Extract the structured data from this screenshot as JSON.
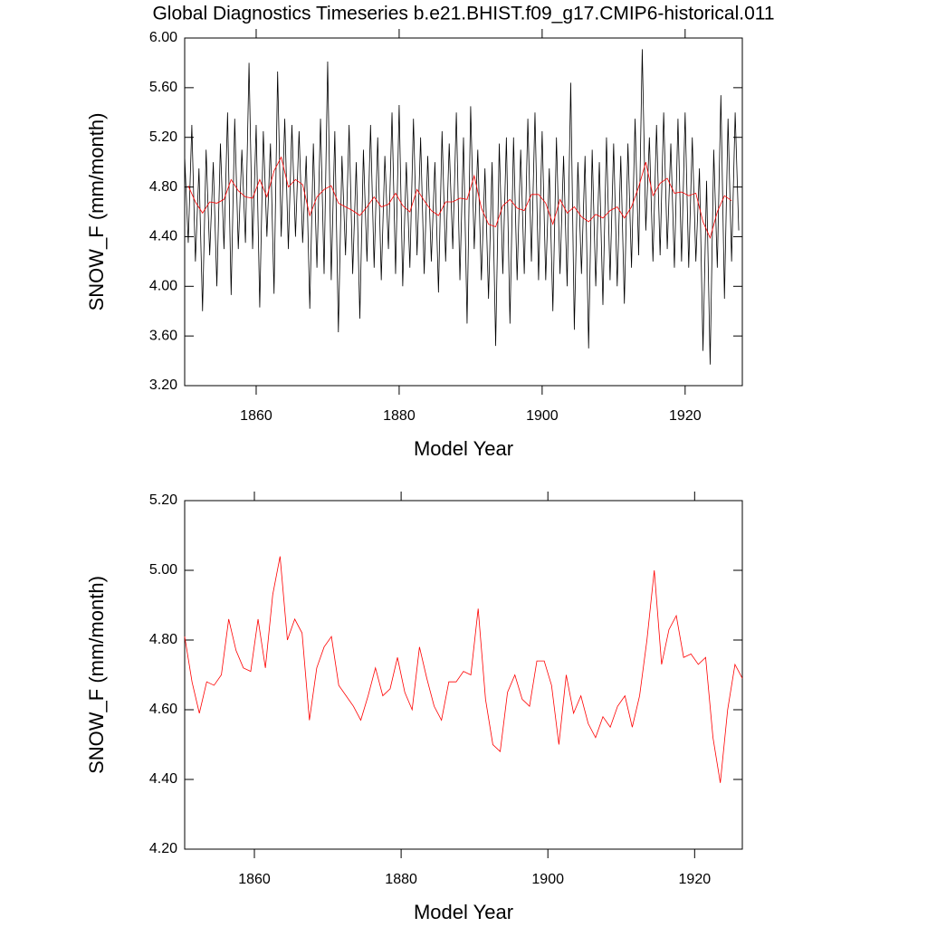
{
  "chart_data": [
    {
      "type": "line",
      "title": "Global Diagnostics Timeseries b.e21.BHIST.f09_g17.CMIP6-historical.011",
      "x_label": "Model Year",
      "y_label": "SNOW_F (mm/month)",
      "xlim": [
        1850,
        1928
      ],
      "xticks": [
        1860,
        1880,
        1900,
        1920
      ],
      "ylim": [
        3.2,
        6.0
      ],
      "yticks": [
        {
          "value": 3.2,
          "label": "3.20"
        },
        {
          "value": 3.6,
          "label": "3.60"
        },
        {
          "value": 4.0,
          "label": "4.00"
        },
        {
          "value": 4.4,
          "label": "4.40"
        },
        {
          "value": 4.8,
          "label": "4.80"
        },
        {
          "value": 5.2,
          "label": "5.20"
        },
        {
          "value": 5.6,
          "label": "5.60"
        },
        {
          "value": 6.0,
          "label": "6.00"
        }
      ],
      "series": [
        {
          "color": "#000000",
          "x": [
            1850,
            1850.5,
            1851,
            1851.5,
            1852,
            1852.5,
            1853,
            1853.5,
            1854,
            1854.5,
            1855,
            1855.5,
            1856,
            1856.5,
            1857,
            1857.5,
            1858,
            1858.5,
            1859,
            1859.5,
            1860,
            1860.5,
            1861,
            1861.5,
            1862,
            1862.5,
            1863,
            1863.5,
            1864,
            1864.5,
            1865,
            1865.5,
            1866,
            1866.5,
            1867,
            1867.5,
            1868,
            1868.5,
            1869,
            1869.5,
            1870,
            1870.5,
            1871,
            1871.5,
            1872,
            1872.5,
            1873,
            1873.5,
            1874,
            1874.5,
            1875,
            1875.5,
            1876,
            1876.5,
            1877,
            1877.5,
            1878,
            1878.5,
            1879,
            1879.5,
            1880,
            1880.5,
            1881,
            1881.5,
            1882,
            1882.5,
            1883,
            1883.5,
            1884,
            1884.5,
            1885,
            1885.5,
            1886,
            1886.5,
            1887,
            1887.5,
            1888,
            1888.5,
            1889,
            1889.5,
            1890,
            1890.5,
            1891,
            1891.5,
            1892,
            1892.5,
            1893,
            1893.5,
            1894,
            1894.5,
            1895,
            1895.5,
            1896,
            1896.5,
            1897,
            1897.5,
            1898,
            1898.5,
            1899,
            1899.5,
            1900,
            1900.5,
            1901,
            1901.5,
            1902,
            1902.5,
            1903,
            1903.5,
            1904,
            1904.5,
            1905,
            1905.5,
            1906,
            1906.5,
            1907,
            1907.5,
            1908,
            1908.5,
            1909,
            1909.5,
            1910,
            1910.5,
            1911,
            1911.5,
            1912,
            1912.5,
            1913,
            1913.5,
            1914,
            1914.5,
            1915,
            1915.5,
            1916,
            1916.5,
            1917,
            1917.5,
            1918,
            1918.5,
            1919,
            1919.5,
            1920,
            1920.5,
            1921,
            1921.5,
            1922,
            1922.5,
            1923,
            1923.5,
            1924,
            1924.5,
            1925,
            1925.5,
            1926,
            1926.5,
            1927,
            1927.5
          ],
          "values": [
            5.05,
            4.35,
            5.3,
            4.2,
            4.95,
            3.8,
            5.1,
            4.25,
            5.0,
            4.0,
            5.15,
            4.3,
            5.4,
            3.93,
            5.35,
            4.3,
            5.1,
            4.35,
            5.8,
            4.3,
            5.3,
            3.83,
            5.25,
            4.4,
            5.15,
            3.94,
            5.73,
            4.4,
            5.35,
            4.3,
            5.3,
            4.4,
            5.25,
            4.35,
            5.05,
            3.82,
            5.15,
            4.15,
            5.35,
            4.1,
            5.81,
            4.05,
            5.25,
            3.63,
            5.05,
            4.25,
            5.3,
            4.1,
            5.0,
            3.74,
            5.1,
            4.2,
            5.3,
            4.15,
            5.2,
            4.05,
            5.05,
            4.3,
            5.4,
            4.1,
            5.46,
            4.0,
            5.0,
            4.15,
            5.35,
            4.25,
            5.2,
            4.1,
            5.05,
            4.2,
            5.0,
            3.95,
            5.25,
            4.2,
            5.15,
            4.3,
            5.4,
            4.05,
            5.2,
            3.7,
            5.45,
            4.3,
            5.1,
            4.05,
            4.95,
            3.9,
            5.0,
            3.52,
            5.15,
            4.1,
            5.2,
            3.7,
            5.2,
            4.05,
            5.1,
            4.1,
            5.35,
            4.2,
            5.4,
            4.05,
            5.25,
            4.05,
            4.95,
            3.8,
            5.2,
            4.1,
            5.05,
            4.0,
            5.64,
            3.65,
            5.0,
            4.1,
            5.05,
            3.5,
            5.1,
            4.0,
            5.0,
            3.85,
            5.2,
            4.05,
            5.15,
            4.0,
            5.05,
            3.86,
            5.15,
            4.15,
            5.35,
            4.25,
            5.91,
            4.45,
            5.2,
            4.2,
            5.3,
            4.25,
            5.4,
            4.3,
            5.15,
            4.15,
            5.35,
            4.2,
            5.4,
            4.15,
            5.2,
            4.2,
            4.95,
            3.48,
            4.85,
            3.37,
            5.1,
            4.15,
            5.54,
            3.9,
            5.35,
            4.2,
            5.4,
            4.45
          ]
        },
        {
          "color": "#ff0000",
          "x": [
            1850.5,
            1851.5,
            1852.5,
            1853.5,
            1854.5,
            1855.5,
            1856.5,
            1857.5,
            1858.5,
            1859.5,
            1860.5,
            1861.5,
            1862.5,
            1863.5,
            1864.5,
            1865.5,
            1866.5,
            1867.5,
            1868.5,
            1869.5,
            1870.5,
            1871.5,
            1872.5,
            1873.5,
            1874.5,
            1875.5,
            1876.5,
            1877.5,
            1878.5,
            1879.5,
            1880.5,
            1881.5,
            1882.5,
            1883.5,
            1884.5,
            1885.5,
            1886.5,
            1887.5,
            1888.5,
            1889.5,
            1890.5,
            1891.5,
            1892.5,
            1893.5,
            1894.5,
            1895.5,
            1896.5,
            1897.5,
            1898.5,
            1899.5,
            1900.5,
            1901.5,
            1902.5,
            1903.5,
            1904.5,
            1905.5,
            1906.5,
            1907.5,
            1908.5,
            1909.5,
            1910.5,
            1911.5,
            1912.5,
            1913.5,
            1914.5,
            1915.5,
            1916.5,
            1917.5,
            1918.5,
            1919.5,
            1920.5,
            1921.5,
            1922.5,
            1923.5,
            1924.5,
            1925.5,
            1926.5
          ],
          "values": [
            4.81,
            4.68,
            4.59,
            4.68,
            4.67,
            4.7,
            4.86,
            4.77,
            4.72,
            4.71,
            4.86,
            4.72,
            4.93,
            5.04,
            4.8,
            4.86,
            4.82,
            4.57,
            4.72,
            4.78,
            4.81,
            4.67,
            4.64,
            4.61,
            4.57,
            4.64,
            4.72,
            4.64,
            4.66,
            4.75,
            4.65,
            4.6,
            4.78,
            4.69,
            4.61,
            4.57,
            4.68,
            4.68,
            4.71,
            4.7,
            4.89,
            4.63,
            4.5,
            4.48,
            4.65,
            4.7,
            4.63,
            4.61,
            4.74,
            4.74,
            4.67,
            4.5,
            4.7,
            4.59,
            4.64,
            4.56,
            4.52,
            4.58,
            4.55,
            4.61,
            4.64,
            4.55,
            4.64,
            4.8,
            5.0,
            4.73,
            4.83,
            4.87,
            4.75,
            4.76,
            4.73,
            4.75,
            4.52,
            4.39,
            4.6,
            4.73,
            4.69
          ]
        }
      ]
    },
    {
      "type": "line",
      "x_label": "Model Year",
      "y_label": "SNOW_F (mm/month)",
      "xlim": [
        1850.5,
        1926.5
      ],
      "xticks": [
        1860,
        1880,
        1900,
        1920
      ],
      "ylim": [
        4.2,
        5.2
      ],
      "yticks": [
        {
          "value": 4.2,
          "label": "4.20"
        },
        {
          "value": 4.4,
          "label": "4.40"
        },
        {
          "value": 4.6,
          "label": "4.60"
        },
        {
          "value": 4.8,
          "label": "4.80"
        },
        {
          "value": 5.0,
          "label": "5.00"
        },
        {
          "value": 5.2,
          "label": "5.20"
        }
      ],
      "series": [
        {
          "color": "#ff0000",
          "x": [
            1850.5,
            1851.5,
            1852.5,
            1853.5,
            1854.5,
            1855.5,
            1856.5,
            1857.5,
            1858.5,
            1859.5,
            1860.5,
            1861.5,
            1862.5,
            1863.5,
            1864.5,
            1865.5,
            1866.5,
            1867.5,
            1868.5,
            1869.5,
            1870.5,
            1871.5,
            1872.5,
            1873.5,
            1874.5,
            1875.5,
            1876.5,
            1877.5,
            1878.5,
            1879.5,
            1880.5,
            1881.5,
            1882.5,
            1883.5,
            1884.5,
            1885.5,
            1886.5,
            1887.5,
            1888.5,
            1889.5,
            1890.5,
            1891.5,
            1892.5,
            1893.5,
            1894.5,
            1895.5,
            1896.5,
            1897.5,
            1898.5,
            1899.5,
            1900.5,
            1901.5,
            1902.5,
            1903.5,
            1904.5,
            1905.5,
            1906.5,
            1907.5,
            1908.5,
            1909.5,
            1910.5,
            1911.5,
            1912.5,
            1913.5,
            1914.5,
            1915.5,
            1916.5,
            1917.5,
            1918.5,
            1919.5,
            1920.5,
            1921.5,
            1922.5,
            1923.5,
            1924.5,
            1925.5,
            1926.5
          ],
          "values": [
            4.81,
            4.68,
            4.59,
            4.68,
            4.67,
            4.7,
            4.86,
            4.77,
            4.72,
            4.71,
            4.86,
            4.72,
            4.93,
            5.04,
            4.8,
            4.86,
            4.82,
            4.57,
            4.72,
            4.78,
            4.81,
            4.67,
            4.64,
            4.61,
            4.57,
            4.64,
            4.72,
            4.64,
            4.66,
            4.75,
            4.65,
            4.6,
            4.78,
            4.69,
            4.61,
            4.57,
            4.68,
            4.68,
            4.71,
            4.7,
            4.89,
            4.63,
            4.5,
            4.48,
            4.65,
            4.7,
            4.63,
            4.61,
            4.74,
            4.74,
            4.67,
            4.5,
            4.7,
            4.59,
            4.64,
            4.56,
            4.52,
            4.58,
            4.55,
            4.61,
            4.64,
            4.55,
            4.64,
            4.8,
            5.0,
            4.73,
            4.83,
            4.87,
            4.75,
            4.76,
            4.73,
            4.75,
            4.52,
            4.39,
            4.6,
            4.73,
            4.69
          ]
        }
      ]
    }
  ]
}
